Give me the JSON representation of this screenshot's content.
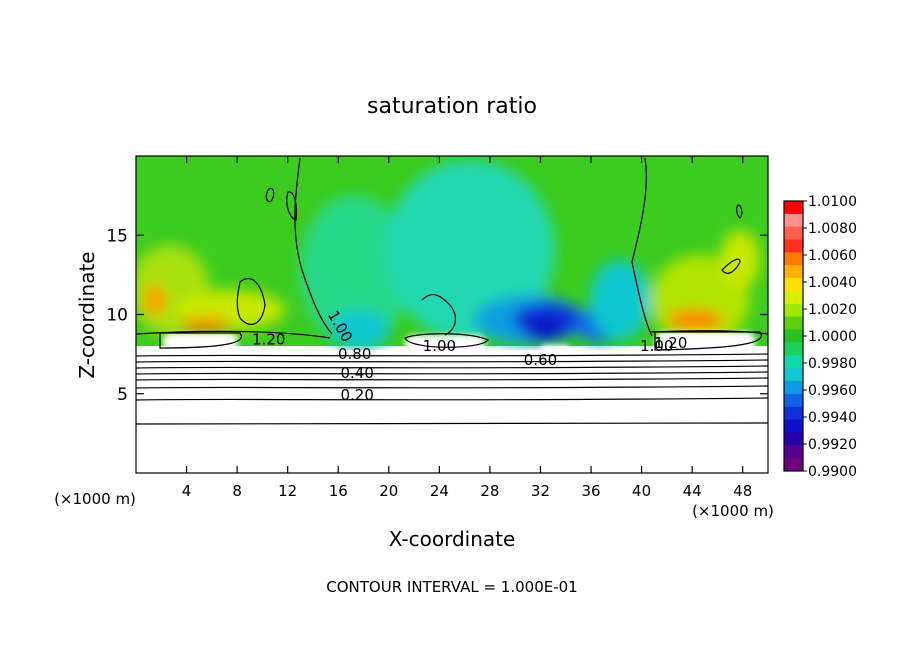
{
  "chart_data": {
    "type": "heatmap",
    "title": "saturation ratio",
    "xlabel": "X-coordinate",
    "ylabel": "Z-coordinate",
    "x_unit": "(×1000 m)",
    "x_unit_right": "(×1000 m)",
    "xlim": [
      0,
      50
    ],
    "ylim": [
      0,
      20
    ],
    "x_ticks": [
      4,
      8,
      12,
      16,
      20,
      24,
      28,
      32,
      36,
      40,
      44,
      48
    ],
    "y_ticks": [
      5,
      10,
      15
    ],
    "footer": "CONTOUR INTERVAL = 1.000E-01",
    "colorbar": {
      "min": 0.99,
      "max": 1.01,
      "labels": [
        "1.0100",
        "1.0080",
        "1.0060",
        "1.0040",
        "1.0020",
        "1.0000",
        "0.9980",
        "0.9960",
        "0.9940",
        "0.9920",
        "0.9900"
      ],
      "colors": [
        "#ff0000",
        "#ff9090",
        "#ff6050",
        "#ff3020",
        "#ff7a00",
        "#ffb000",
        "#ffe000",
        "#d8f000",
        "#a0e800",
        "#58d010",
        "#28c020",
        "#1ad060",
        "#10d8a8",
        "#10c8d0",
        "#1098e8",
        "#1060e8",
        "#1030d8",
        "#1010c8",
        "#2a00a8",
        "#560090",
        "#700080"
      ]
    },
    "contour_labels": [
      {
        "text": "1.20",
        "x": 10.5,
        "z": 8.1
      },
      {
        "text": "1.00",
        "x": 15.8,
        "z": 9.1
      },
      {
        "text": "0.80",
        "x": 17.3,
        "z": 7.2
      },
      {
        "text": "0.40",
        "x": 17.5,
        "z": 6.0
      },
      {
        "text": "0.20",
        "x": 17.5,
        "z": 4.6
      },
      {
        "text": "1.00",
        "x": 24.0,
        "z": 7.7
      },
      {
        "text": "0.60",
        "x": 32.0,
        "z": 6.8
      },
      {
        "text": "1.00",
        "x": 41.2,
        "z": 7.7
      },
      {
        "text": "1.20",
        "x": 42.3,
        "z": 7.9
      }
    ],
    "mixing_level_z": 8.5
  }
}
